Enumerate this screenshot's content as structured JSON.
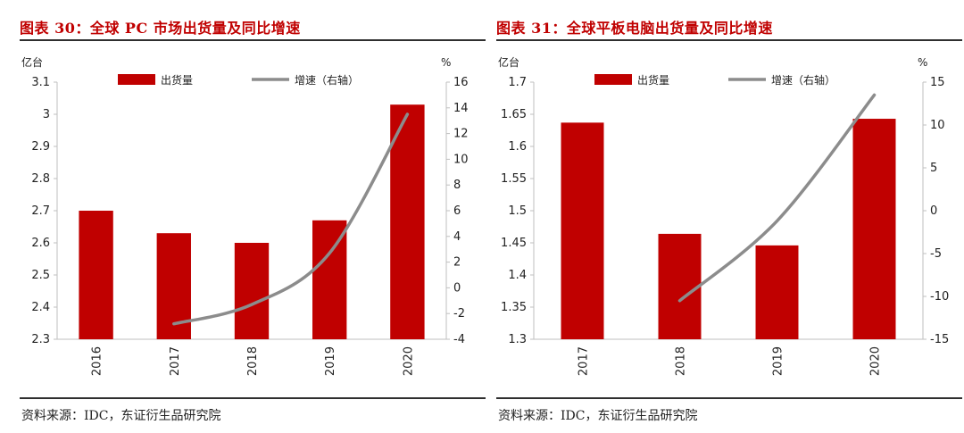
{
  "source_label": "资料来源：IDC，东证衍生品研究院",
  "colors": {
    "bar": "#c00000",
    "line": "#8c8c8c",
    "title": "#c00000",
    "rule": "#2f2f2f"
  },
  "charts": [
    {
      "title": "图表 30：全球 PC 市场出货量及同比增速",
      "chart_data": {
        "type": "bar",
        "title": "图表 30：全球 PC 市场出货量及同比增速",
        "categories": [
          "2016",
          "2017",
          "2018",
          "2019",
          "2020"
        ],
        "y_left_unit": "亿台",
        "y_right_unit": "%",
        "ylim_left": [
          2.3,
          3.1
        ],
        "ylim_right": [
          -4,
          16
        ],
        "y_left_ticks": [
          "2.3",
          "2.4",
          "2.5",
          "2.6",
          "2.7",
          "2.8",
          "2.9",
          "3",
          "3.1"
        ],
        "y_right_ticks": [
          "-4",
          "-2",
          "0",
          "2",
          "4",
          "6",
          "8",
          "10",
          "12",
          "14",
          "16"
        ],
        "legend_position": "top-center",
        "series": [
          {
            "name": "出货量",
            "type": "bar",
            "axis": "left",
            "values": [
              2.7,
              2.63,
              2.6,
              2.67,
              3.03
            ]
          },
          {
            "name": "增速（右轴）",
            "type": "line",
            "axis": "right",
            "values": [
              null,
              -2.8,
              -1.3,
              2.7,
              13.5
            ]
          }
        ]
      }
    },
    {
      "title": "图表 31：全球平板电脑出货量及同比增速",
      "chart_data": {
        "type": "bar",
        "title": "图表 31：全球平板电脑出货量及同比增速",
        "categories": [
          "2017",
          "2018",
          "2019",
          "2020"
        ],
        "y_left_unit": "亿台",
        "y_right_unit": "%",
        "ylim_left": [
          1.3,
          1.7
        ],
        "ylim_right": [
          -15,
          15
        ],
        "y_left_ticks": [
          "1.3",
          "1.35",
          "1.4",
          "1.45",
          "1.5",
          "1.55",
          "1.6",
          "1.65",
          "1.7"
        ],
        "y_right_ticks": [
          "-15",
          "-10",
          "-5",
          "0",
          "5",
          "10",
          "15"
        ],
        "legend_position": "top-center",
        "series": [
          {
            "name": "出货量",
            "type": "bar",
            "axis": "left",
            "values": [
              1.637,
              1.464,
              1.446,
              1.643
            ]
          },
          {
            "name": "增速（右轴）",
            "type": "line",
            "axis": "right",
            "values": [
              null,
              -10.5,
              -1.2,
              13.5
            ]
          }
        ]
      }
    }
  ]
}
